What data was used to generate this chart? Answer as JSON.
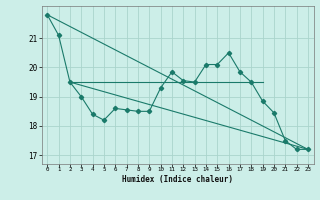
{
  "xlabel": "Humidex (Indice chaleur)",
  "ylabel": "",
  "background_color": "#cceee8",
  "grid_color": "#aad4cc",
  "line_color": "#1a7a6a",
  "xlim": [
    -0.5,
    23.5
  ],
  "ylim": [
    16.7,
    22.1
  ],
  "x_ticks": [
    0,
    1,
    2,
    3,
    4,
    5,
    6,
    7,
    8,
    9,
    10,
    11,
    12,
    13,
    14,
    15,
    16,
    17,
    18,
    19,
    20,
    21,
    22,
    23
  ],
  "y_ticks": [
    17,
    18,
    19,
    20,
    21
  ],
  "line1_x": [
    0,
    1,
    2,
    3,
    4,
    5,
    6,
    7,
    8,
    9,
    10,
    11,
    12,
    13,
    14,
    15,
    16,
    17,
    18,
    19,
    20,
    21,
    22,
    23
  ],
  "line1_y": [
    21.8,
    21.1,
    19.5,
    19.0,
    18.4,
    18.2,
    18.6,
    18.55,
    18.5,
    18.5,
    19.3,
    19.85,
    19.55,
    19.5,
    20.1,
    20.1,
    20.5,
    19.85,
    19.5,
    18.85,
    18.45,
    17.5,
    17.2,
    17.2
  ],
  "line2_x": [
    0,
    23
  ],
  "line2_y": [
    21.8,
    17.2
  ],
  "line3_x": [
    2,
    19
  ],
  "line3_y": [
    19.5,
    19.5
  ],
  "line4_x": [
    2,
    23
  ],
  "line4_y": [
    19.5,
    17.2
  ]
}
